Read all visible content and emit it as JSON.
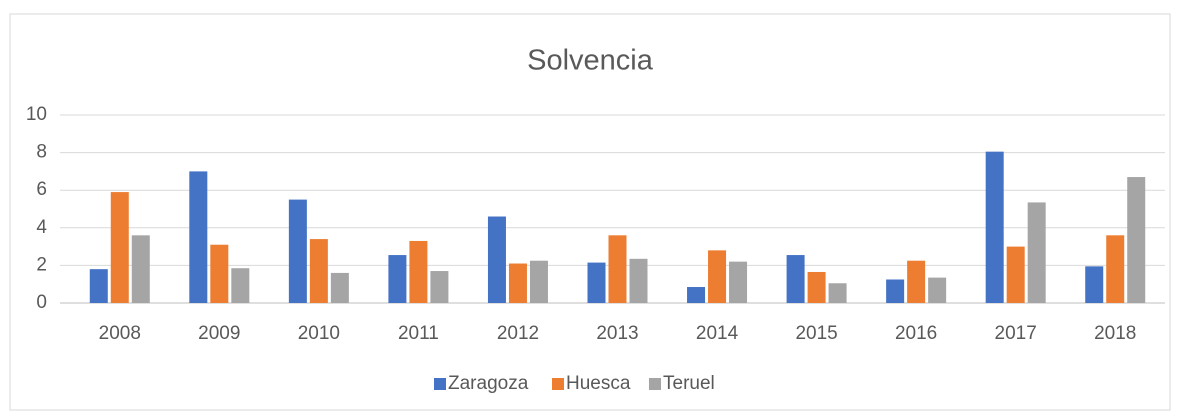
{
  "chart_data": {
    "type": "bar",
    "title": "Solvencia",
    "categories": [
      "2008",
      "2009",
      "2010",
      "2011",
      "2012",
      "2013",
      "2014",
      "2015",
      "2016",
      "2017",
      "2018"
    ],
    "series": [
      {
        "name": "Zaragoza",
        "color": "#4472c4",
        "values": [
          1.8,
          7.0,
          5.5,
          2.55,
          4.6,
          2.15,
          0.85,
          2.55,
          1.25,
          8.05,
          1.95
        ]
      },
      {
        "name": "Huesca",
        "color": "#ed7d31",
        "values": [
          5.9,
          3.1,
          3.4,
          3.3,
          2.1,
          3.6,
          2.8,
          1.65,
          2.25,
          3.0,
          3.6
        ]
      },
      {
        "name": "Teruel",
        "color": "#a5a5a5",
        "values": [
          3.6,
          1.85,
          1.6,
          1.7,
          2.25,
          2.35,
          2.2,
          1.05,
          1.35,
          5.35,
          6.7
        ]
      }
    ],
    "ylim": [
      0,
      10
    ],
    "yticks": [
      0,
      2,
      4,
      6,
      8,
      10
    ],
    "grid": true,
    "legend": "bottom"
  }
}
